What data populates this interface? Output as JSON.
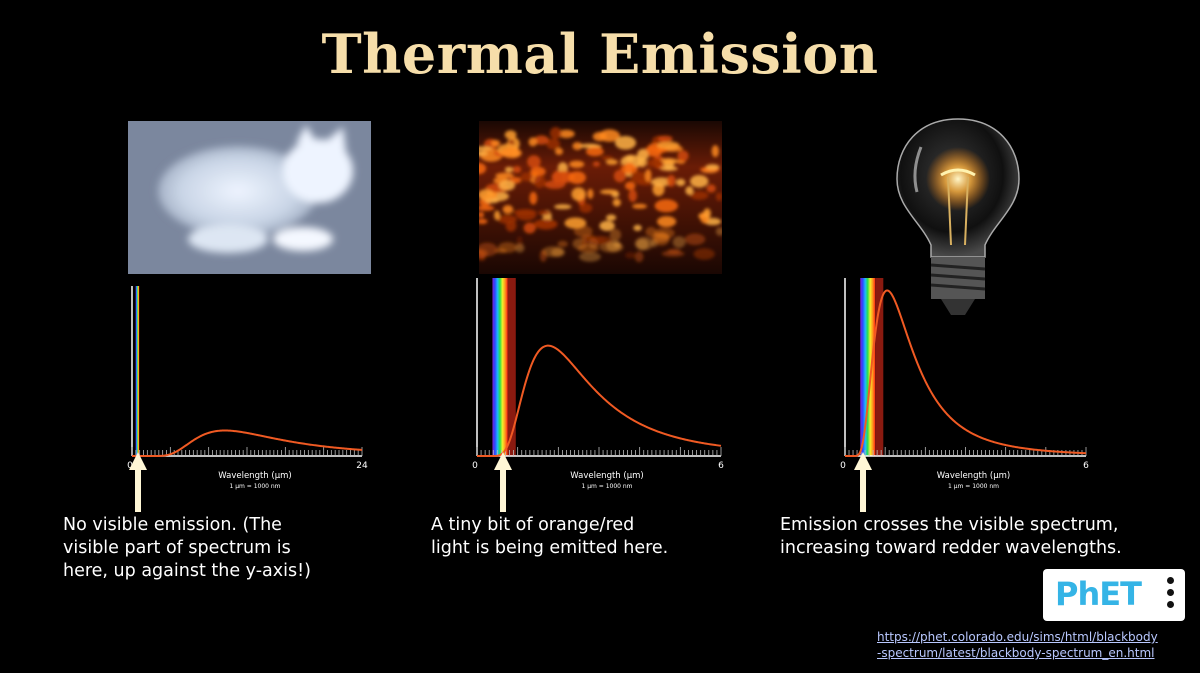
{
  "title": "Thermal Emission",
  "panels": [
    {
      "photo_icon": "thermal-camera-cat-image",
      "caption": [
        "No visible emission. (The",
        "visible part of spectrum is",
        "here, up against the y-axis!)"
      ]
    },
    {
      "photo_icon": "glowing-embers-image",
      "caption": [
        "A tiny bit of orange/red",
        "light is being emitted here."
      ]
    },
    {
      "photo_icon": "light-bulb-image",
      "caption": [
        "Emission crosses the visible spectrum,",
        "increasing toward redder wavelengths."
      ]
    }
  ],
  "chart_data": [
    {
      "type": "line",
      "xlabel": "Wavelength (μm)",
      "subnote": "1 μm  =  1000 nm",
      "x_ticks": [
        "0",
        "24"
      ],
      "xlim": [
        0,
        24
      ],
      "peak_x": 9.7,
      "peak_relative_height": 0.15,
      "curve_color": "#f05a23",
      "visible_band": [
        0.38,
        0.75
      ]
    },
    {
      "type": "line",
      "xlabel": "Wavelength (μm)",
      "subnote": "1 μm  =  1000 nm",
      "x_ticks": [
        "0",
        "6"
      ],
      "xlim": [
        0,
        6
      ],
      "peak_x": 1.75,
      "peak_relative_height": 0.62,
      "curve_color": "#f05a23",
      "visible_band": [
        0.38,
        0.75
      ]
    },
    {
      "type": "line",
      "xlabel": "Wavelength (μm)",
      "subnote": "1 μm  =  1000 nm",
      "x_ticks": [
        "0",
        "6"
      ],
      "xlim": [
        0,
        6
      ],
      "peak_x": 1.05,
      "peak_relative_height": 0.93,
      "curve_color": "#f05a23",
      "visible_band": [
        0.38,
        0.75
      ]
    }
  ],
  "logo": {
    "text": "PhET",
    "icon": "phet-menu-icon"
  },
  "source_link": [
    "https://phet.colorado.edu/sims/html/blackbody",
    "-spectrum/latest/blackbody-spectrum_en.html"
  ],
  "colors": {
    "title": "#f6deaa",
    "curve": "#f05a23",
    "link": "#b9c8ff",
    "phet_blue": "#35b4e6"
  }
}
